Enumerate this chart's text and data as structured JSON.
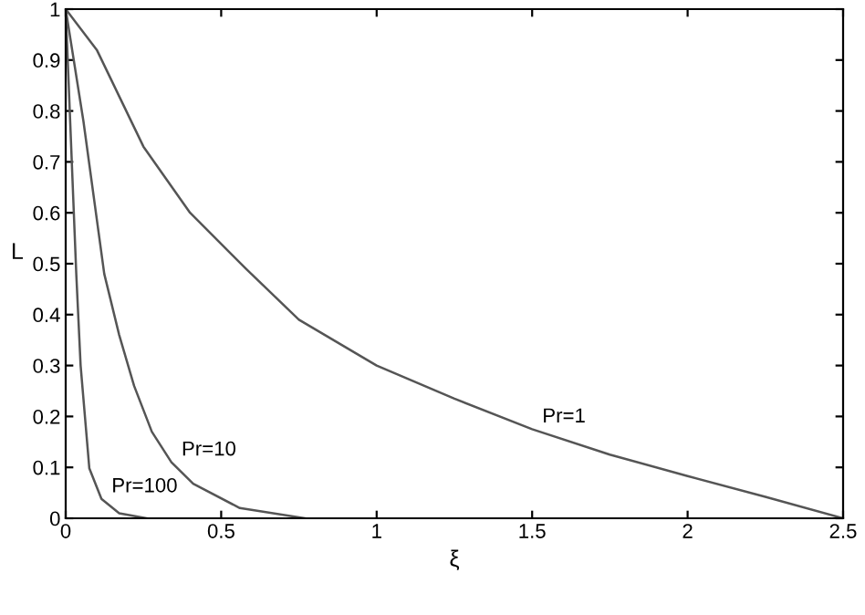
{
  "chart_data": {
    "type": "line",
    "xlabel": "ξ",
    "ylabel": "L",
    "xlim": [
      0,
      2.5
    ],
    "ylim": [
      0,
      1
    ],
    "xticks": [
      0,
      0.5,
      1,
      1.5,
      2,
      2.5
    ],
    "yticks": [
      0,
      0.1,
      0.2,
      0.3,
      0.4,
      0.5,
      0.6,
      0.7,
      0.8,
      0.9,
      1
    ],
    "grid": false,
    "legend": false,
    "series": [
      {
        "name": "Pr=1",
        "color": "#555555",
        "x": [
          0,
          0.1,
          0.25,
          0.4,
          0.58,
          0.75,
          1,
          1.25,
          1.5,
          1.75,
          2,
          2.25,
          2.5
        ],
        "values": [
          1,
          0.92,
          0.73,
          0.6,
          0.49,
          0.39,
          0.3,
          0.235,
          0.175,
          0.125,
          0.083,
          0.042,
          0
        ]
      },
      {
        "name": "Pr=10",
        "color": "#555555",
        "x": [
          0,
          0.057,
          0.124,
          0.172,
          0.22,
          0.277,
          0.34,
          0.41,
          0.56,
          0.77
        ],
        "values": [
          1,
          0.78,
          0.48,
          0.36,
          0.26,
          0.17,
          0.11,
          0.068,
          0.02,
          0
        ]
      },
      {
        "name": "Pr=100",
        "color": "#555555",
        "x": [
          0,
          0.034,
          0.048,
          0.076,
          0.115,
          0.172,
          0.26
        ],
        "values": [
          1,
          0.48,
          0.3,
          0.098,
          0.038,
          0.01,
          0
        ]
      }
    ]
  }
}
